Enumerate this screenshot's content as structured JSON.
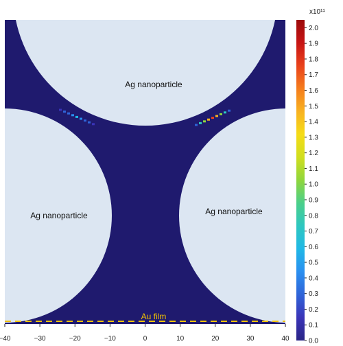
{
  "chart_data": {
    "type": "heatmap",
    "colorbar": {
      "exponent_label": "x10¹¹",
      "min": 0.0,
      "max": 2.05,
      "ticks": [
        "0.0",
        "0.1",
        "0.2",
        "0.3",
        "0.4",
        "0.5",
        "0.6",
        "0.7",
        "0.8",
        "0.9",
        "1.0",
        "1.1",
        "1.2",
        "1.3",
        "1.4",
        "1.5",
        "1.6",
        "1.7",
        "1.8",
        "1.9",
        "2.0"
      ],
      "colors": [
        "#2a2585",
        "#3a34b8",
        "#2f64d8",
        "#2a8ff0",
        "#20b8e6",
        "#2ec7c0",
        "#4bcf8a",
        "#8fd63c",
        "#d0de1f",
        "#f5dc17",
        "#f8b221",
        "#f57d1c",
        "#e9421b",
        "#c71414",
        "#9c0a0a"
      ]
    },
    "x_axis": {
      "ticks": [
        "−40",
        "−30",
        "−20",
        "−10",
        "0",
        "10",
        "20",
        "30",
        "40"
      ],
      "range": [
        -40,
        40
      ]
    },
    "regions": [
      {
        "label": "Ag nanoparticle"
      },
      {
        "label": "Ag nanoparticle"
      },
      {
        "label": "Ag nanoparticle"
      },
      {
        "label": "Au film"
      }
    ],
    "hotspots": [
      {
        "x": -18,
        "intensity": 0.6
      },
      {
        "x": 20,
        "intensity": 1.8
      }
    ],
    "background_color": "#1f1a6e",
    "particle_color": "#dce6f2",
    "film_line_color": "#f2c200"
  }
}
